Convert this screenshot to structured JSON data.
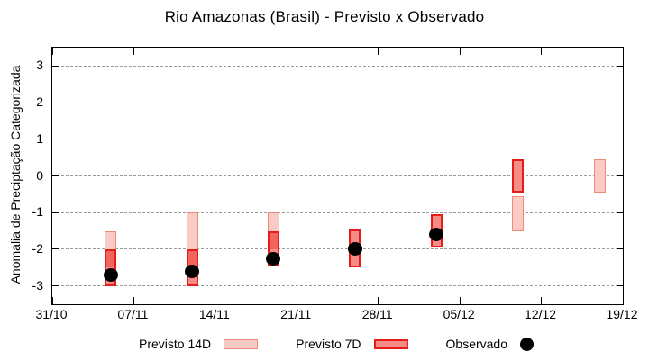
{
  "title": "Rio Amazonas (Brasil) - Previsto x Observado",
  "y_axis": {
    "label": "Anomalia de Preciptação Categorizada",
    "tick_labels": [
      "3",
      "2",
      "1",
      "0",
      "-1",
      "-2",
      "-3"
    ],
    "min": -3.5,
    "max": 3.5
  },
  "x_axis": {
    "tick_labels": [
      "31/10",
      "07/11",
      "14/11",
      "21/11",
      "28/11",
      "05/12",
      "12/12",
      "19/12"
    ]
  },
  "legend": {
    "items": [
      {
        "label": "Previsto 14D",
        "swatch": "light-pink-box"
      },
      {
        "label": "Previsto 7D",
        "swatch": "red-box"
      },
      {
        "label": "Observado",
        "swatch": "black-dot"
      }
    ]
  },
  "colors": {
    "forecast14_fill": "#f9cbc4",
    "forecast14_border": "#f0897a",
    "forecast7_fill": "#f58c86",
    "forecast7_overlap_fill": "#f2655f",
    "forecast7_border": "#e51c17",
    "observed": "#000000",
    "gridline": "#9a9a9a",
    "axis": "#000000"
  },
  "chart_data": {
    "type": "bar",
    "subtype": "weekly forecast range bars (candlestick-style) with observed points",
    "title": "Rio Amazonas (Brasil) - Previsto x Observado",
    "xlabel": "",
    "ylabel": "Anomalia de Preciptação Categorizada",
    "xlim": [
      "31/10",
      "19/12"
    ],
    "ylim": [
      -3.5,
      3.5
    ],
    "grid": "horizontal dashed lines at integer y values",
    "legend_position": "below plot, horizontal",
    "x": [
      "05/11",
      "12/11",
      "19/11",
      "26/11",
      "03/12",
      "10/12",
      "17/12"
    ],
    "series": [
      {
        "name": "Previsto 14D",
        "style": "range-bar",
        "ranges": [
          [
            -2.5,
            -1.5
          ],
          [
            -2.5,
            -1.0
          ],
          [
            -2.0,
            -1.0
          ],
          null,
          null,
          [
            -1.5,
            -0.55
          ],
          [
            -0.45,
            0.45
          ]
        ]
      },
      {
        "name": "Previsto 7D",
        "style": "range-bar",
        "ranges": [
          [
            -3.0,
            -2.0
          ],
          [
            -3.0,
            -2.0
          ],
          [
            -2.45,
            -1.5
          ],
          [
            -2.5,
            -1.45
          ],
          [
            -1.95,
            -1.05
          ],
          [
            -0.45,
            0.45
          ],
          null
        ]
      },
      {
        "name": "Observado",
        "style": "point",
        "values": [
          -2.7,
          -2.6,
          -2.25,
          -2.0,
          -1.6,
          null,
          null
        ]
      }
    ]
  }
}
